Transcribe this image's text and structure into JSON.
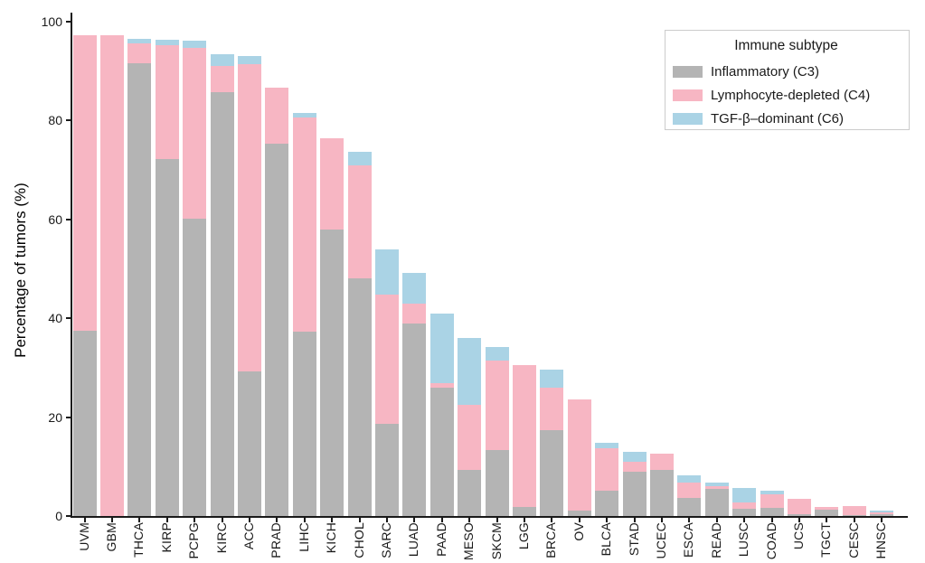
{
  "chart_data": {
    "type": "bar",
    "stacked": true,
    "title": "",
    "xlabel": "",
    "ylabel": "Percentage of tumors (%)",
    "ylim": [
      0,
      100
    ],
    "yticks": [
      0,
      20,
      40,
      60,
      80,
      100
    ],
    "grid": false,
    "legend_title": "Immune subtype",
    "legend_position": "upper right",
    "categories": [
      "UVM",
      "GBM",
      "THCA",
      "KIRP",
      "PCPG",
      "KIRC",
      "ACC",
      "PRAD",
      "LIHC",
      "KICH",
      "CHOL",
      "SARC",
      "LUAD",
      "PAAD",
      "MESO",
      "SKCM",
      "LGG",
      "BRCA",
      "OV",
      "BLCA",
      "STAD",
      "UCEC",
      "ESCA",
      "READ",
      "LUSC",
      "COAD",
      "UCS",
      "TGCT",
      "CESC",
      "HNSC"
    ],
    "series": [
      {
        "key": "inflammatory-c3",
        "name": "Inflammatory (C3)",
        "color": "#b4b4b4",
        "values": [
          37.4,
          0,
          91.5,
          72.2,
          60.1,
          85.7,
          29.3,
          75.3,
          37.3,
          57.9,
          48.0,
          18.7,
          39.0,
          25.9,
          9.4,
          13.4,
          1.8,
          17.3,
          1.1,
          5.1,
          8.9,
          9.4,
          3.7,
          5.4,
          1.5,
          1.6,
          0.3,
          1.2,
          0.2,
          0.3
        ]
      },
      {
        "key": "lymphocyte-depleted-c4",
        "name": "Lymphocyte-depleted (C4)",
        "color": "#f7b6c3",
        "values": [
          59.9,
          97.3,
          4.1,
          23.1,
          34.6,
          5.3,
          62.1,
          11.3,
          43.4,
          18.5,
          22.9,
          26.1,
          4.0,
          1.0,
          13.1,
          18.1,
          28.8,
          8.6,
          22.5,
          8.7,
          2.1,
          3.3,
          3.1,
          0.6,
          1.2,
          2.7,
          3.1,
          0.6,
          1.8,
          0.4
        ]
      },
      {
        "key": "tgf-b-dominant-c6",
        "name": "TGF-β–dominant (C6)",
        "color": "#aad3e5",
        "values": [
          0,
          0,
          1.0,
          1.1,
          1.4,
          2.5,
          1.6,
          0,
          0.8,
          0,
          2.7,
          9.1,
          6.2,
          14.0,
          13.5,
          2.6,
          0,
          3.7,
          0,
          1.0,
          1.9,
          0,
          1.5,
          0.8,
          3.0,
          0.9,
          0,
          0,
          0,
          0.4
        ]
      }
    ]
  },
  "axis": {
    "color": "#1a1a1a"
  }
}
